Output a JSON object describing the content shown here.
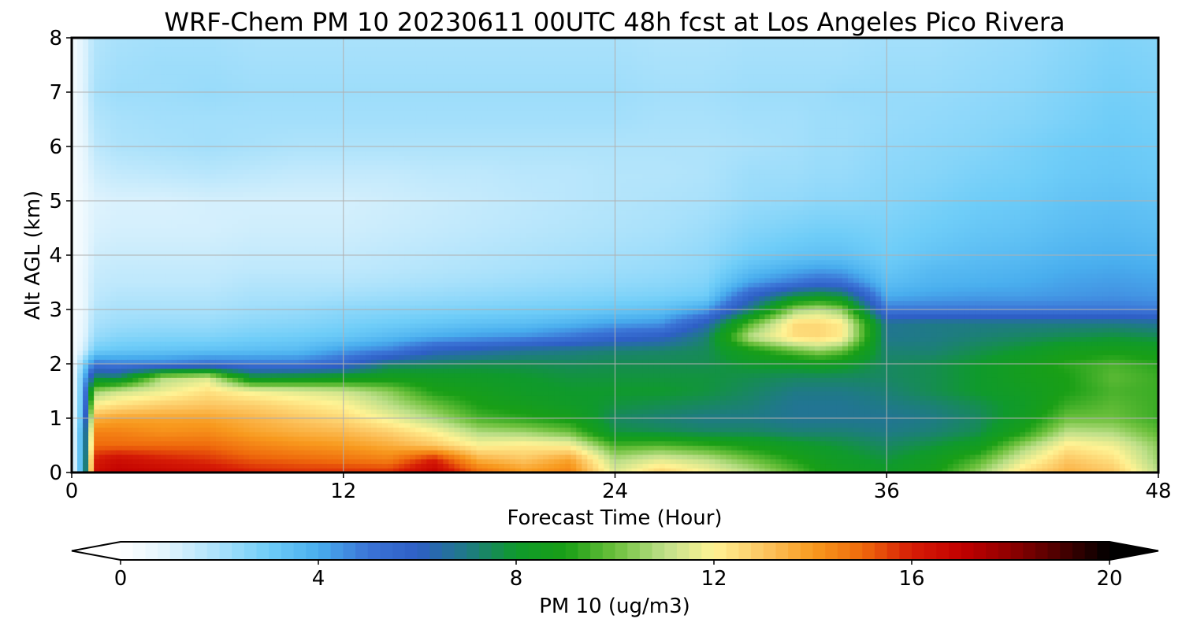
{
  "chart_data": {
    "type": "heatmap",
    "title": "WRF-Chem PM 10  20230611 00UTC 48h fcst at Los Angeles Pico Rivera",
    "xlabel": "Forecast Time (Hour)",
    "ylabel": "Alt AGL (km)",
    "xlim": [
      0,
      48
    ],
    "ylim": [
      0,
      8
    ],
    "x_ticks": [
      "0",
      "12",
      "24",
      "36",
      "48"
    ],
    "y_ticks": [
      "0",
      "1",
      "2",
      "3",
      "4",
      "5",
      "6",
      "7",
      "8"
    ],
    "grid": true,
    "colorbar": {
      "label": "PM 10  (ug/m3)",
      "range": [
        0,
        20
      ],
      "ticks": [
        "0",
        "4",
        "8",
        "12",
        "16",
        "20"
      ],
      "extend": "both",
      "orientation": "horizontal",
      "colors": [
        "#ffffff",
        "#dff3fd",
        "#a9e1fb",
        "#6fcdf8",
        "#49aeee",
        "#3b74d6",
        "#2e5fc6",
        "#1f7a86",
        "#0f9a2c",
        "#199f16",
        "#6cc03c",
        "#bfe08a",
        "#fff394",
        "#fcc662",
        "#f89a1e",
        "#ef6a0c",
        "#d61c06",
        "#c20000",
        "#8e0000",
        "#4a0000",
        "#000000"
      ]
    },
    "y_levels": [
      0,
      0.25,
      0.5,
      0.75,
      1.0,
      1.25,
      1.5,
      1.75,
      2.0,
      2.25,
      2.5,
      2.75,
      3.0,
      3.25,
      3.5,
      3.75,
      4.0,
      4.5,
      5.0,
      5.5,
      6.0,
      6.5,
      7.0,
      7.5,
      8.0
    ],
    "x_hours": [
      0,
      0.5,
      1,
      2,
      4,
      6,
      8,
      10,
      12,
      14,
      16,
      18,
      20,
      22,
      24,
      26,
      28,
      30,
      32,
      33,
      34,
      36,
      38,
      40,
      42,
      44,
      46,
      48
    ],
    "profiles": [
      {
        "hour": 0,
        "values": [
          0.2,
          0.2,
          0.2,
          0.2,
          0.2,
          0.2,
          0.2,
          0.2,
          0.2,
          0.2,
          0.2,
          0.2,
          0.2,
          0.2,
          0.2,
          0.2,
          0.2,
          0.2,
          0.2,
          0.2,
          0.3,
          0.3,
          0.3,
          0.3,
          0.3
        ]
      },
      {
        "hour": 0.5,
        "values": [
          4.5,
          4.5,
          4.5,
          4.5,
          4.0,
          3.8,
          3.6,
          3.4,
          2.6,
          1.2,
          0.8,
          0.7,
          0.6,
          0.6,
          0.6,
          0.6,
          0.5,
          0.5,
          0.5,
          0.6,
          0.7,
          0.8,
          0.9,
          0.9,
          0.9
        ]
      },
      {
        "hour": 1,
        "values": [
          16.5,
          16.0,
          15.0,
          14.5,
          13.5,
          12.0,
          10.5,
          7.5,
          5.0,
          3.0,
          2.3,
          2.0,
          1.8,
          1.6,
          1.5,
          1.4,
          1.3,
          1.1,
          1.0,
          1.3,
          1.6,
          1.8,
          2.0,
          1.9,
          1.8
        ]
      },
      {
        "hour": 2,
        "values": [
          17.0,
          16.5,
          15.0,
          14.5,
          13.8,
          12.4,
          11.2,
          7.4,
          4.8,
          3.2,
          2.6,
          2.2,
          2.0,
          1.8,
          1.6,
          1.5,
          1.4,
          1.2,
          1.1,
          1.5,
          1.9,
          2.0,
          2.2,
          2.1,
          2.0
        ]
      },
      {
        "hour": 4,
        "values": [
          16.8,
          16.0,
          15.0,
          14.2,
          13.8,
          12.8,
          11.7,
          10.8,
          4.8,
          3.3,
          2.7,
          2.3,
          2.0,
          1.8,
          1.6,
          1.5,
          1.4,
          1.2,
          1.1,
          1.6,
          2.0,
          2.1,
          2.2,
          2.2,
          2.1
        ]
      },
      {
        "hour": 6,
        "values": [
          16.5,
          15.7,
          15.0,
          14.3,
          13.8,
          13.0,
          12.4,
          11.4,
          5.2,
          3.4,
          2.7,
          2.3,
          2.0,
          1.8,
          1.6,
          1.5,
          1.4,
          1.2,
          1.2,
          1.7,
          2.1,
          2.1,
          2.3,
          2.2,
          2.1
        ]
      },
      {
        "hour": 8,
        "values": [
          16.0,
          15.2,
          14.5,
          13.8,
          13.4,
          12.8,
          11.8,
          8.0,
          5.0,
          3.5,
          2.9,
          2.5,
          2.2,
          2.0,
          1.8,
          1.6,
          1.5,
          1.3,
          1.2,
          1.6,
          2.0,
          2.1,
          2.2,
          2.1,
          2.0
        ]
      },
      {
        "hour": 10,
        "values": [
          15.8,
          15.0,
          14.2,
          13.5,
          13.0,
          12.4,
          11.5,
          8.2,
          5.0,
          3.6,
          3.0,
          2.6,
          2.3,
          2.0,
          1.8,
          1.6,
          1.5,
          1.3,
          1.2,
          1.5,
          1.9,
          2.1,
          2.2,
          2.1,
          2.0
        ]
      },
      {
        "hour": 12,
        "values": [
          15.8,
          14.8,
          14.0,
          13.3,
          12.6,
          12.0,
          11.2,
          8.4,
          5.6,
          4.3,
          3.2,
          2.8,
          2.5,
          2.1,
          1.8,
          1.6,
          1.5,
          1.3,
          1.2,
          1.5,
          1.9,
          2.1,
          2.2,
          2.1,
          2.0
        ]
      },
      {
        "hour": 14,
        "values": [
          15.8,
          14.5,
          13.6,
          12.8,
          11.8,
          11.0,
          10.4,
          8.6,
          7.2,
          4.8,
          3.6,
          3.0,
          2.6,
          2.2,
          1.9,
          1.7,
          1.6,
          1.4,
          1.3,
          1.5,
          1.9,
          2.1,
          2.2,
          2.1,
          2.0
        ]
      },
      {
        "hour": 16,
        "values": [
          17.0,
          16.0,
          13.0,
          12.0,
          10.8,
          10.0,
          9.0,
          8.4,
          7.4,
          6.0,
          4.0,
          3.2,
          2.7,
          2.3,
          2.0,
          1.8,
          1.7,
          1.5,
          1.4,
          1.6,
          1.9,
          2.1,
          2.2,
          2.1,
          2.0
        ]
      },
      {
        "hour": 18,
        "values": [
          15.0,
          13.5,
          12.0,
          10.8,
          9.6,
          9.0,
          8.6,
          8.2,
          7.6,
          6.4,
          4.3,
          3.4,
          2.8,
          2.4,
          2.1,
          1.9,
          1.8,
          1.6,
          1.5,
          1.6,
          1.9,
          2.1,
          2.2,
          2.1,
          2.0
        ]
      },
      {
        "hour": 20,
        "values": [
          14.0,
          13.0,
          12.2,
          10.6,
          9.2,
          8.6,
          8.2,
          8.0,
          7.6,
          6.8,
          4.5,
          3.5,
          2.9,
          2.5,
          2.2,
          2.0,
          1.9,
          1.7,
          1.6,
          1.7,
          1.9,
          2.1,
          2.2,
          2.1,
          2.0
        ]
      },
      {
        "hour": 22,
        "values": [
          14.5,
          13.8,
          12.0,
          10.0,
          8.8,
          8.2,
          8.0,
          7.8,
          7.5,
          7.0,
          5.0,
          3.8,
          3.0,
          2.6,
          2.3,
          2.1,
          2.0,
          1.8,
          1.7,
          1.7,
          1.9,
          2.1,
          2.2,
          2.1,
          2.0
        ]
      },
      {
        "hour": 24,
        "values": [
          11.5,
          10.8,
          9.6,
          7.8,
          7.4,
          7.8,
          8.0,
          7.8,
          7.6,
          7.2,
          5.6,
          4.2,
          3.2,
          2.7,
          2.4,
          2.2,
          2.1,
          1.9,
          1.8,
          1.8,
          1.9,
          2.1,
          2.2,
          2.1,
          2.0
        ]
      },
      {
        "hour": 26,
        "values": [
          12.8,
          11.5,
          9.8,
          7.6,
          7.2,
          7.6,
          8.0,
          7.8,
          7.6,
          7.3,
          6.0,
          4.4,
          3.4,
          2.8,
          2.5,
          2.3,
          2.2,
          2.0,
          1.9,
          1.8,
          1.9,
          2.0,
          2.1,
          2.0,
          1.9
        ]
      },
      {
        "hour": 28,
        "values": [
          12.0,
          11.0,
          9.4,
          7.4,
          7.0,
          7.4,
          7.8,
          7.8,
          7.6,
          7.5,
          7.2,
          6.2,
          4.2,
          3.0,
          2.7,
          2.5,
          2.4,
          2.2,
          2.0,
          1.9,
          1.9,
          2.0,
          2.1,
          2.0,
          1.9
        ]
      },
      {
        "hour": 30,
        "values": [
          11.0,
          10.0,
          8.8,
          7.4,
          7.0,
          7.2,
          7.4,
          7.6,
          8.0,
          8.8,
          11.0,
          9.8,
          7.2,
          5.8,
          4.2,
          3.5,
          3.0,
          2.6,
          2.3,
          2.2,
          2.0,
          2.1,
          2.2,
          2.1,
          2.0
        ]
      },
      {
        "hour": 32,
        "values": [
          9.8,
          9.0,
          8.2,
          7.2,
          6.8,
          6.8,
          7.0,
          7.4,
          8.2,
          10.0,
          12.5,
          12.6,
          10.6,
          7.8,
          5.0,
          4.0,
          3.3,
          2.8,
          2.4,
          2.2,
          2.1,
          2.1,
          2.2,
          2.1,
          2.0
        ]
      },
      {
        "hour": 33,
        "values": [
          9.0,
          8.5,
          8.0,
          7.2,
          6.8,
          6.8,
          7.0,
          7.4,
          8.4,
          10.5,
          12.6,
          12.6,
          11.0,
          8.2,
          5.4,
          4.2,
          3.4,
          2.9,
          2.5,
          2.3,
          2.2,
          2.2,
          2.2,
          2.1,
          2.0
        ]
      },
      {
        "hour": 34,
        "values": [
          8.6,
          8.2,
          7.8,
          7.2,
          6.8,
          6.8,
          7.0,
          7.4,
          8.2,
          10.0,
          12.2,
          12.2,
          10.4,
          7.8,
          5.2,
          4.1,
          3.4,
          2.9,
          2.5,
          2.3,
          2.2,
          2.2,
          2.3,
          2.1,
          2.0
        ]
      },
      {
        "hour": 36,
        "values": [
          8.2,
          7.8,
          7.4,
          7.0,
          6.8,
          7.0,
          7.2,
          7.4,
          7.4,
          7.2,
          6.9,
          6.8,
          5.0,
          4.0,
          3.5,
          3.2,
          3.0,
          2.8,
          2.6,
          2.5,
          2.4,
          2.3,
          2.3,
          2.2,
          2.1
        ]
      },
      {
        "hour": 38,
        "values": [
          8.8,
          8.4,
          7.8,
          7.2,
          7.0,
          7.2,
          7.6,
          7.6,
          7.6,
          7.2,
          7.0,
          7.0,
          5.0,
          4.2,
          3.8,
          3.6,
          3.3,
          3.0,
          2.8,
          2.6,
          2.5,
          2.4,
          2.3,
          2.2,
          2.1
        ]
      },
      {
        "hour": 40,
        "values": [
          10.5,
          9.6,
          8.4,
          7.6,
          7.4,
          7.6,
          8.0,
          8.0,
          8.0,
          7.6,
          7.2,
          7.0,
          5.0,
          4.3,
          3.9,
          3.7,
          3.5,
          3.2,
          3.0,
          2.8,
          2.6,
          2.5,
          2.4,
          2.3,
          2.2
        ]
      },
      {
        "hour": 42,
        "values": [
          12.5,
          11.5,
          10.5,
          9.0,
          8.4,
          8.2,
          8.4,
          8.6,
          8.6,
          8.0,
          7.4,
          7.0,
          5.0,
          4.3,
          4.0,
          3.8,
          3.6,
          3.3,
          3.1,
          2.9,
          2.8,
          2.6,
          2.5,
          2.4,
          2.3
        ]
      },
      {
        "hour": 44,
        "values": [
          13.5,
          13.0,
          12.2,
          11.0,
          10.0,
          9.4,
          9.0,
          9.0,
          9.2,
          8.6,
          7.6,
          7.0,
          5.0,
          4.4,
          4.2,
          4.0,
          3.8,
          3.5,
          3.3,
          3.1,
          3.0,
          2.8,
          2.7,
          2.6,
          2.5
        ]
      },
      {
        "hour": 46,
        "values": [
          13.0,
          12.4,
          11.8,
          10.8,
          10.0,
          9.8,
          9.6,
          9.8,
          9.6,
          8.8,
          7.8,
          7.0,
          5.0,
          4.5,
          4.3,
          4.1,
          3.9,
          3.6,
          3.4,
          3.2,
          3.1,
          3.0,
          2.9,
          2.8,
          2.7
        ]
      },
      {
        "hour": 48,
        "values": [
          11.0,
          10.6,
          10.4,
          9.8,
          9.4,
          9.4,
          9.4,
          9.4,
          9.2,
          8.6,
          7.6,
          6.8,
          4.9,
          4.4,
          4.2,
          4.0,
          3.8,
          3.5,
          3.3,
          3.1,
          3.0,
          2.9,
          2.8,
          2.7,
          2.6
        ]
      }
    ]
  }
}
